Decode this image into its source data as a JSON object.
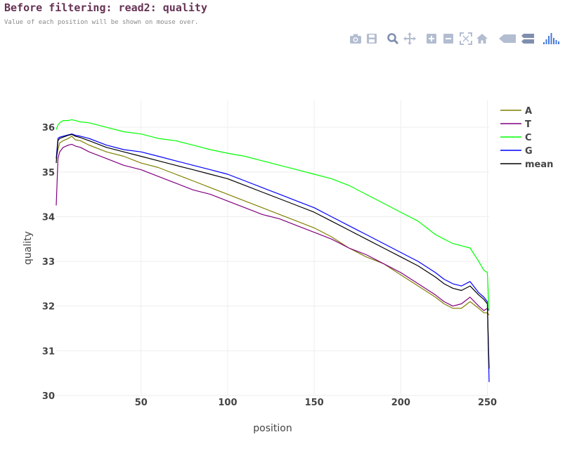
{
  "page": {
    "title": "Before filtering: read2: quality",
    "subtitle": "Value of each position will be shown on mouse over."
  },
  "modebar": [
    {
      "name": "camera-icon",
      "label": "Download plot as a png"
    },
    {
      "name": "save-icon",
      "label": "Save and edit plot in cloud"
    },
    {
      "name": "zoom-icon",
      "label": "Zoom"
    },
    {
      "name": "pan-icon",
      "label": "Pan"
    },
    {
      "name": "zoom-in-icon",
      "label": "Zoom in"
    },
    {
      "name": "zoom-out-icon",
      "label": "Zoom out"
    },
    {
      "name": "autoscale-icon",
      "label": "Autoscale"
    },
    {
      "name": "home-icon",
      "label": "Reset axes"
    },
    {
      "name": "spike-lines-icon",
      "label": "Toggle spike lines"
    },
    {
      "name": "hover-compare-icon",
      "label": "Compare data on hover"
    },
    {
      "name": "plotly-logo-icon",
      "label": "Produced with Plotly"
    }
  ],
  "colors": {
    "A": "#808000",
    "T": "#800080",
    "C": "#00ff00",
    "G": "#0000ff",
    "mean": "#000000",
    "grid": "#eeeeee",
    "modebar_icon": "#b3bdd1",
    "modebar_active": "#7f8fae",
    "plotly_logo": "#447adb"
  },
  "chart_data": {
    "type": "line",
    "title": "Before filtering: read2: quality",
    "xlabel": "position",
    "ylabel": "quality",
    "xlim": [
      1,
      251
    ],
    "ylim": [
      30,
      36.6
    ],
    "xticks": [
      50,
      100,
      150,
      200,
      250
    ],
    "yticks": [
      30,
      31,
      32,
      33,
      34,
      35,
      36
    ],
    "grid": true,
    "legend_position": "top-right",
    "series": [
      {
        "name": "A",
        "x": [
          1,
          2,
          3,
          5,
          8,
          10,
          12,
          15,
          20,
          30,
          40,
          50,
          60,
          70,
          80,
          90,
          100,
          110,
          120,
          130,
          140,
          150,
          160,
          170,
          180,
          190,
          200,
          210,
          220,
          225,
          230,
          235,
          240,
          245,
          248,
          250,
          251
        ],
        "y": [
          35.3,
          35.5,
          35.65,
          35.7,
          35.75,
          35.8,
          35.72,
          35.7,
          35.6,
          35.45,
          35.35,
          35.2,
          35.1,
          34.95,
          34.8,
          34.65,
          34.5,
          34.35,
          34.2,
          34.05,
          33.9,
          33.75,
          33.55,
          33.3,
          33.1,
          32.95,
          32.7,
          32.45,
          32.2,
          32.05,
          31.95,
          31.95,
          32.1,
          31.95,
          31.85,
          31.85,
          31.8
        ]
      },
      {
        "name": "T",
        "x": [
          1,
          2,
          3,
          5,
          8,
          10,
          12,
          15,
          20,
          30,
          40,
          50,
          60,
          70,
          80,
          90,
          100,
          110,
          120,
          130,
          140,
          150,
          160,
          170,
          180,
          190,
          200,
          210,
          220,
          225,
          230,
          235,
          240,
          245,
          248,
          250,
          251
        ],
        "y": [
          34.25,
          35.3,
          35.45,
          35.55,
          35.6,
          35.62,
          35.58,
          35.55,
          35.45,
          35.3,
          35.15,
          35.05,
          34.9,
          34.75,
          34.6,
          34.5,
          34.35,
          34.2,
          34.05,
          33.95,
          33.8,
          33.65,
          33.5,
          33.3,
          33.15,
          32.95,
          32.75,
          32.5,
          32.25,
          32.1,
          32.0,
          32.05,
          32.2,
          32.0,
          31.9,
          31.95,
          31.9
        ]
      },
      {
        "name": "C",
        "x": [
          1,
          2,
          3,
          5,
          8,
          10,
          12,
          15,
          20,
          30,
          40,
          50,
          60,
          70,
          80,
          90,
          100,
          110,
          120,
          130,
          140,
          150,
          160,
          170,
          180,
          190,
          200,
          210,
          220,
          225,
          230,
          235,
          240,
          245,
          248,
          250,
          251
        ],
        "y": [
          35.95,
          36.05,
          36.1,
          36.15,
          36.15,
          36.17,
          36.15,
          36.12,
          36.1,
          36.0,
          35.9,
          35.85,
          35.75,
          35.7,
          35.6,
          35.5,
          35.42,
          35.35,
          35.25,
          35.15,
          35.05,
          34.95,
          34.85,
          34.7,
          34.5,
          34.3,
          34.1,
          33.9,
          33.6,
          33.5,
          33.4,
          33.35,
          33.3,
          33.0,
          32.8,
          32.75,
          31.9
        ]
      },
      {
        "name": "G",
        "x": [
          1,
          2,
          3,
          5,
          8,
          10,
          12,
          15,
          20,
          30,
          40,
          50,
          60,
          70,
          80,
          90,
          100,
          110,
          120,
          130,
          140,
          150,
          160,
          170,
          180,
          190,
          200,
          210,
          220,
          225,
          230,
          235,
          240,
          245,
          248,
          250,
          251
        ],
        "y": [
          35.3,
          35.75,
          35.78,
          35.8,
          35.83,
          35.85,
          35.82,
          35.8,
          35.75,
          35.6,
          35.5,
          35.45,
          35.35,
          35.25,
          35.15,
          35.05,
          34.95,
          34.8,
          34.65,
          34.5,
          34.35,
          34.2,
          34.0,
          33.8,
          33.6,
          33.4,
          33.2,
          33.0,
          32.75,
          32.6,
          32.5,
          32.45,
          32.55,
          32.3,
          32.2,
          32.1,
          30.3
        ]
      },
      {
        "name": "mean",
        "x": [
          1,
          2,
          3,
          5,
          8,
          10,
          12,
          15,
          20,
          30,
          40,
          50,
          60,
          70,
          80,
          90,
          100,
          110,
          120,
          130,
          140,
          150,
          160,
          170,
          180,
          190,
          200,
          210,
          220,
          225,
          230,
          235,
          240,
          245,
          248,
          250,
          251
        ],
        "y": [
          35.2,
          35.7,
          35.75,
          35.78,
          35.82,
          35.84,
          35.8,
          35.77,
          35.7,
          35.55,
          35.45,
          35.35,
          35.25,
          35.15,
          35.05,
          34.95,
          34.85,
          34.7,
          34.55,
          34.4,
          34.25,
          34.1,
          33.9,
          33.7,
          33.5,
          33.3,
          33.1,
          32.9,
          32.65,
          32.5,
          32.4,
          32.35,
          32.45,
          32.25,
          32.15,
          32.05,
          30.6
        ]
      }
    ]
  }
}
